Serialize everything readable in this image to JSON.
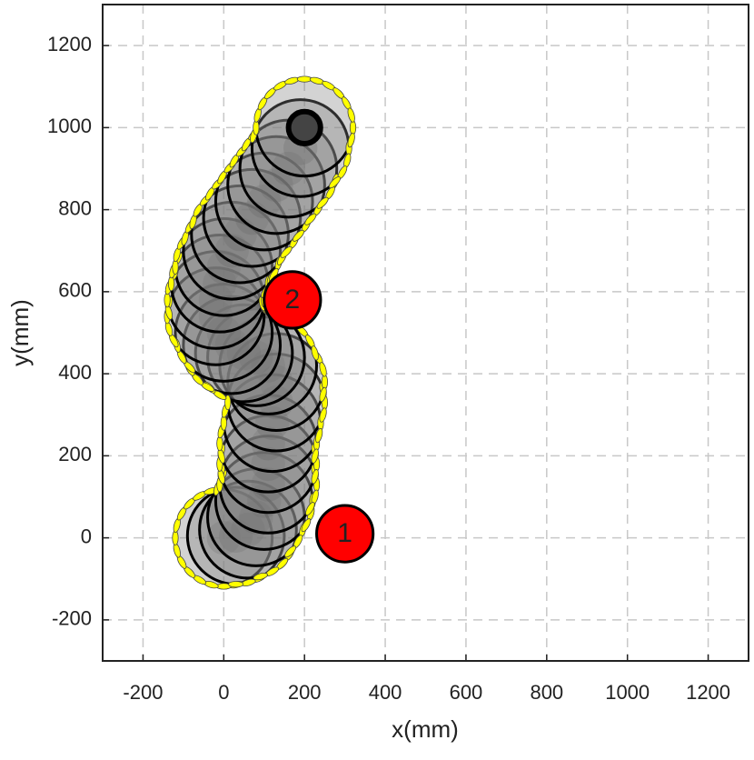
{
  "chart_data": {
    "type": "scatter",
    "xlabel": "x(mm)",
    "ylabel": "y(mm)",
    "xlim": [
      -300,
      1300
    ],
    "ylim": [
      -300,
      1300
    ],
    "xticks": [
      -200,
      0,
      200,
      400,
      600,
      800,
      1000,
      1200
    ],
    "yticks": [
      -200,
      0,
      200,
      400,
      600,
      800,
      1000,
      1200
    ],
    "grid": true,
    "robot": {
      "color": "#808080",
      "radius": 120,
      "x": [
        0,
        30,
        60,
        80,
        100,
        110,
        110,
        110,
        120,
        130,
        130,
        110,
        80,
        50,
        20,
        0,
        -20,
        -20,
        -10,
        0,
        20,
        40,
        70,
        100,
        130,
        160,
        190,
        200
      ],
      "y": [
        0,
        5,
        20,
        50,
        90,
        130,
        180,
        230,
        280,
        330,
        380,
        420,
        440,
        450,
        470,
        500,
        540,
        580,
        620,
        660,
        700,
        740,
        780,
        820,
        860,
        900,
        950,
        1000
      ]
    },
    "obstacles": [
      {
        "label": "1",
        "x": 300,
        "y": 10,
        "radius": 70,
        "color": "#ff0000"
      },
      {
        "label": "2",
        "x": 170,
        "y": 580,
        "radius": 70,
        "color": "#ff0000"
      }
    ]
  }
}
